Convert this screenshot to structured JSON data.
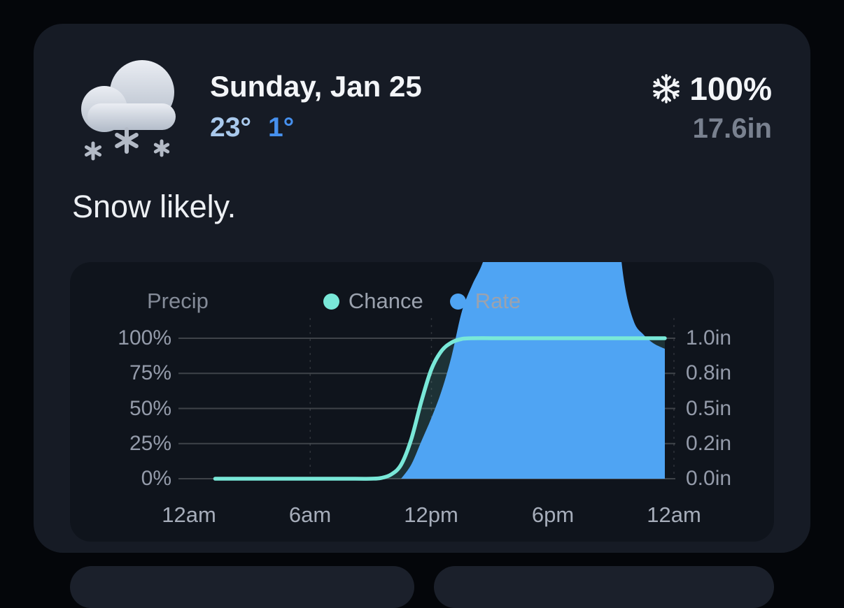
{
  "header": {
    "date": "Sunday, Jan 25",
    "high_temp": "23°",
    "low_temp": "1°",
    "precip_probability": "100%",
    "precip_amount": "17.6in"
  },
  "summary": {
    "text": "Snow likely."
  },
  "colors": {
    "page_background": "#04060a",
    "card_background": "#161b25",
    "chart_background": "#0f141c",
    "high_temp": "#a9c9ec",
    "low_temp": "#4690ee",
    "accent_teal": "#79e8d8",
    "accent_blue": "#4fa4f3"
  },
  "chart_data": {
    "type": "area",
    "title": "Precip",
    "legend": [
      {
        "label": "Chance",
        "color": "#79e8d8"
      },
      {
        "label": "Rate",
        "color": "#4fa4f3"
      }
    ],
    "x_axis": {
      "labels": [
        "12am",
        "6am",
        "12pm",
        "6pm",
        "12am"
      ],
      "hours": [
        0,
        6,
        12,
        18,
        24
      ]
    },
    "y_left": {
      "labels": [
        "100%",
        "75%",
        "50%",
        "25%",
        "0%"
      ],
      "values": [
        100,
        75,
        50,
        25,
        0
      ],
      "unit": "%"
    },
    "y_right": {
      "labels": [
        "1.0in",
        "0.8in",
        "0.5in",
        "0.2in",
        "0.0in"
      ],
      "values": [
        1.0,
        0.8,
        0.5,
        0.2,
        0.0
      ],
      "unit": "in"
    },
    "grid": {
      "horizontal": true,
      "vertical_dashed": true
    },
    "series": [
      {
        "name": "Chance",
        "unit": "%",
        "color": "#79e8d8",
        "fill": "rgba(121,232,216,0.14)",
        "points": [
          [
            1.3,
            0
          ],
          [
            4,
            0
          ],
          [
            8,
            0
          ],
          [
            9,
            0
          ],
          [
            9.5,
            0.5
          ],
          [
            10,
            3
          ],
          [
            10.5,
            10
          ],
          [
            11,
            28
          ],
          [
            11.5,
            55
          ],
          [
            12,
            78
          ],
          [
            12.5,
            91
          ],
          [
            13,
            97
          ],
          [
            13.5,
            99.5
          ],
          [
            14,
            100
          ],
          [
            16,
            100
          ],
          [
            20,
            100
          ],
          [
            23.55,
            100
          ]
        ]
      },
      {
        "name": "Rate",
        "unit": "in",
        "color": "#4fa4f3",
        "fill": "#4fa4f3",
        "points": [
          [
            10.5,
            0
          ],
          [
            11,
            0.08
          ],
          [
            11.5,
            0.22
          ],
          [
            12,
            0.42
          ],
          [
            12.5,
            0.65
          ],
          [
            13,
            0.9
          ],
          [
            13.5,
            1.15
          ],
          [
            14,
            1.3
          ],
          [
            14.5,
            1.42
          ],
          [
            15,
            1.6
          ],
          [
            15.5,
            1.9
          ],
          [
            16,
            2.2
          ],
          [
            17,
            2.4
          ],
          [
            19,
            2.4
          ],
          [
            20.5,
            2.3
          ],
          [
            21,
            1.9
          ],
          [
            21.5,
            1.35
          ],
          [
            22,
            1.1
          ],
          [
            22.5,
            1.02
          ],
          [
            23,
            0.97
          ],
          [
            23.55,
            0.94
          ]
        ]
      }
    ]
  }
}
